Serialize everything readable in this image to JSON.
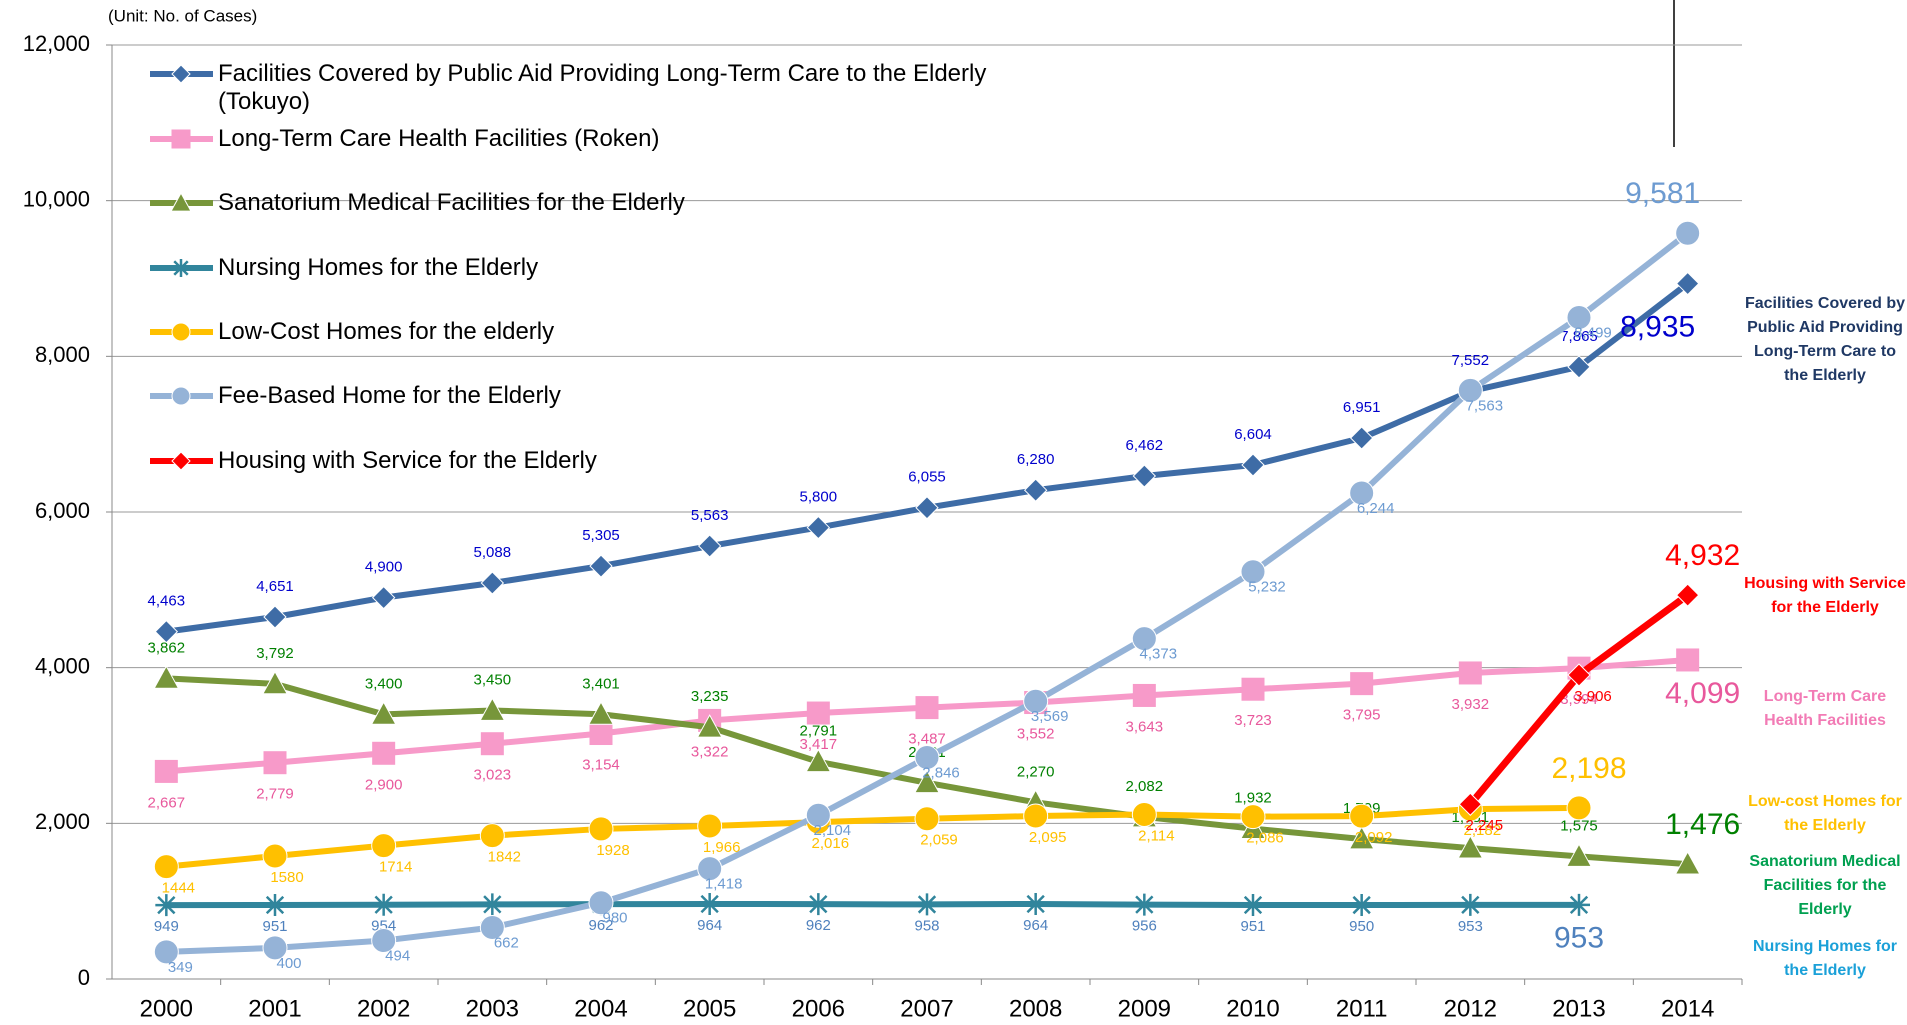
{
  "chart_data": {
    "type": "line",
    "subtitle": "(Unit: No. of Cases)",
    "categories": [
      "2000",
      "2001",
      "2002",
      "2003",
      "2004",
      "2005",
      "2006",
      "2007",
      "2008",
      "2009",
      "2010",
      "2011",
      "2012",
      "2013",
      "2014"
    ],
    "ylim": [
      0,
      12000
    ],
    "yticks": [
      0,
      {
        "value": 2000,
        "label": "2,000"
      },
      {
        "value": 4000,
        "label": "4,000"
      },
      {
        "value": 6000,
        "label": "6,000"
      },
      {
        "value": 8000,
        "label": "8,000"
      },
      {
        "value": 10000,
        "label": "10,000"
      },
      {
        "value": 12000,
        "label": "12,000"
      }
    ],
    "grid": true,
    "series": [
      {
        "name": "Facilities Covered by Public Aid Providing Long-Term Care to the Elderly (Tokuyo)",
        "color": "#3e6ca6",
        "label_color": "#0000cc",
        "marker": "diamond",
        "values": [
          4463,
          4651,
          4900,
          5088,
          5305,
          5563,
          5800,
          6055,
          6280,
          6462,
          6604,
          6951,
          7552,
          7865,
          8935
        ],
        "value_labels": [
          "4,463",
          "4,651",
          "4,900",
          "5,088",
          "5,305",
          "5,563",
          "5,800",
          "6,055",
          "6,280",
          "6,462",
          "6,604",
          "6,951",
          "7,552",
          "7,865",
          "8,935"
        ]
      },
      {
        "name": "Long-Term Care Health Facilities (Roken)",
        "color": "#f79ac9",
        "label_color": "#e8589c",
        "marker": "square",
        "values": [
          2667,
          2779,
          2900,
          3023,
          3154,
          3322,
          3417,
          3487,
          3552,
          3643,
          3723,
          3795,
          3932,
          3994,
          4099
        ],
        "value_labels": [
          "2,667",
          "2,779",
          "2,900",
          "3,023",
          "3,154",
          "3,322",
          "3,417",
          "3,487",
          "3,552",
          "3,643",
          "3,723",
          "3,795",
          "3,932",
          "3,994",
          "4,099"
        ]
      },
      {
        "name": "Sanatorium Medical Facilities for the Elderly",
        "color": "#77963a",
        "label_color": "#008000",
        "marker": "triangle",
        "values": [
          3862,
          3792,
          3400,
          3450,
          3401,
          3235,
          2791,
          2521,
          2270,
          2082,
          1932,
          1799,
          1681,
          1575,
          1476
        ],
        "value_labels": [
          "3,862",
          "3,792",
          "3,400",
          "3,450",
          "3,401",
          "3,235",
          "2,791",
          "2,521",
          "2,270",
          "2,082",
          "1,932",
          "1,799",
          "1,681",
          "1,575",
          "1,476"
        ]
      },
      {
        "name": "Nursing Homes for the Elderly",
        "color": "#31859c",
        "label_color": "#4f81bd",
        "marker": "star",
        "values": [
          949,
          951,
          954,
          959,
          962,
          964,
          962,
          958,
          964,
          956,
          951,
          950,
          953,
          953,
          null
        ],
        "value_labels": [
          "949",
          "951",
          "954",
          "959",
          "962",
          "964",
          "962",
          "958",
          "964",
          "956",
          "951",
          "950",
          "953",
          "953",
          null
        ]
      },
      {
        "name": "Low-Cost Homes for the elderly",
        "color": "#ffc000",
        "label_color": "#ffc000",
        "marker": "circle",
        "values": [
          1444,
          1580,
          1714,
          1842,
          1928,
          1966,
          2016,
          2059,
          2095,
          2114,
          2086,
          2092,
          2182,
          2198,
          null
        ],
        "value_labels": [
          "1444",
          "1580",
          "1714",
          "1842",
          "1928",
          "1,966",
          "2,016",
          "2,059",
          "2,095",
          "2,114",
          "2,086",
          "2,092",
          "2,182",
          "2,198",
          null
        ]
      },
      {
        "name": "Fee-Based Home for the Elderly",
        "color": "#95b3d7",
        "label_color": "#6d9bd1",
        "marker": "circle",
        "values": [
          349,
          400,
          494,
          662,
          980,
          1418,
          2104,
          2846,
          3569,
          4373,
          5232,
          6244,
          7563,
          8499,
          9581
        ],
        "value_labels": [
          "349",
          "400",
          "494",
          "662",
          "980",
          "1,418",
          "2,104",
          "2,846",
          "3,569",
          "4,373",
          "5,232",
          "6,244",
          "7,563",
          "8,499",
          "9,581"
        ]
      },
      {
        "name": "Housing with Service for the Elderly",
        "color": "#ff0000",
        "label_color": "#ff0000",
        "marker": "diamond",
        "values": [
          null,
          null,
          null,
          null,
          null,
          null,
          null,
          null,
          null,
          null,
          null,
          null,
          2245,
          3906,
          4932
        ],
        "value_labels": [
          null,
          null,
          null,
          null,
          null,
          null,
          null,
          null,
          null,
          null,
          null,
          null,
          "2,245",
          "3,906",
          "4,932"
        ]
      }
    ],
    "annotations": [
      {
        "text": "Facilities Covered by Public Aid Providing Long-Term Care to the Elderly",
        "color": "#1f3864"
      },
      {
        "text": "Housing with Service for the Elderly",
        "color": "#ff0000"
      },
      {
        "text": "Long-Term Care Health Facilities",
        "color": "#f27bb5"
      },
      {
        "text": "Low-cost Homes for the Elderly",
        "color": "#ffc000"
      },
      {
        "text": "Sanatorium Medical Facilities for the Elderly",
        "color": "#00a050"
      },
      {
        "text": "Nursing Homes for the Elderly",
        "color": "#1aa0d8"
      }
    ]
  }
}
